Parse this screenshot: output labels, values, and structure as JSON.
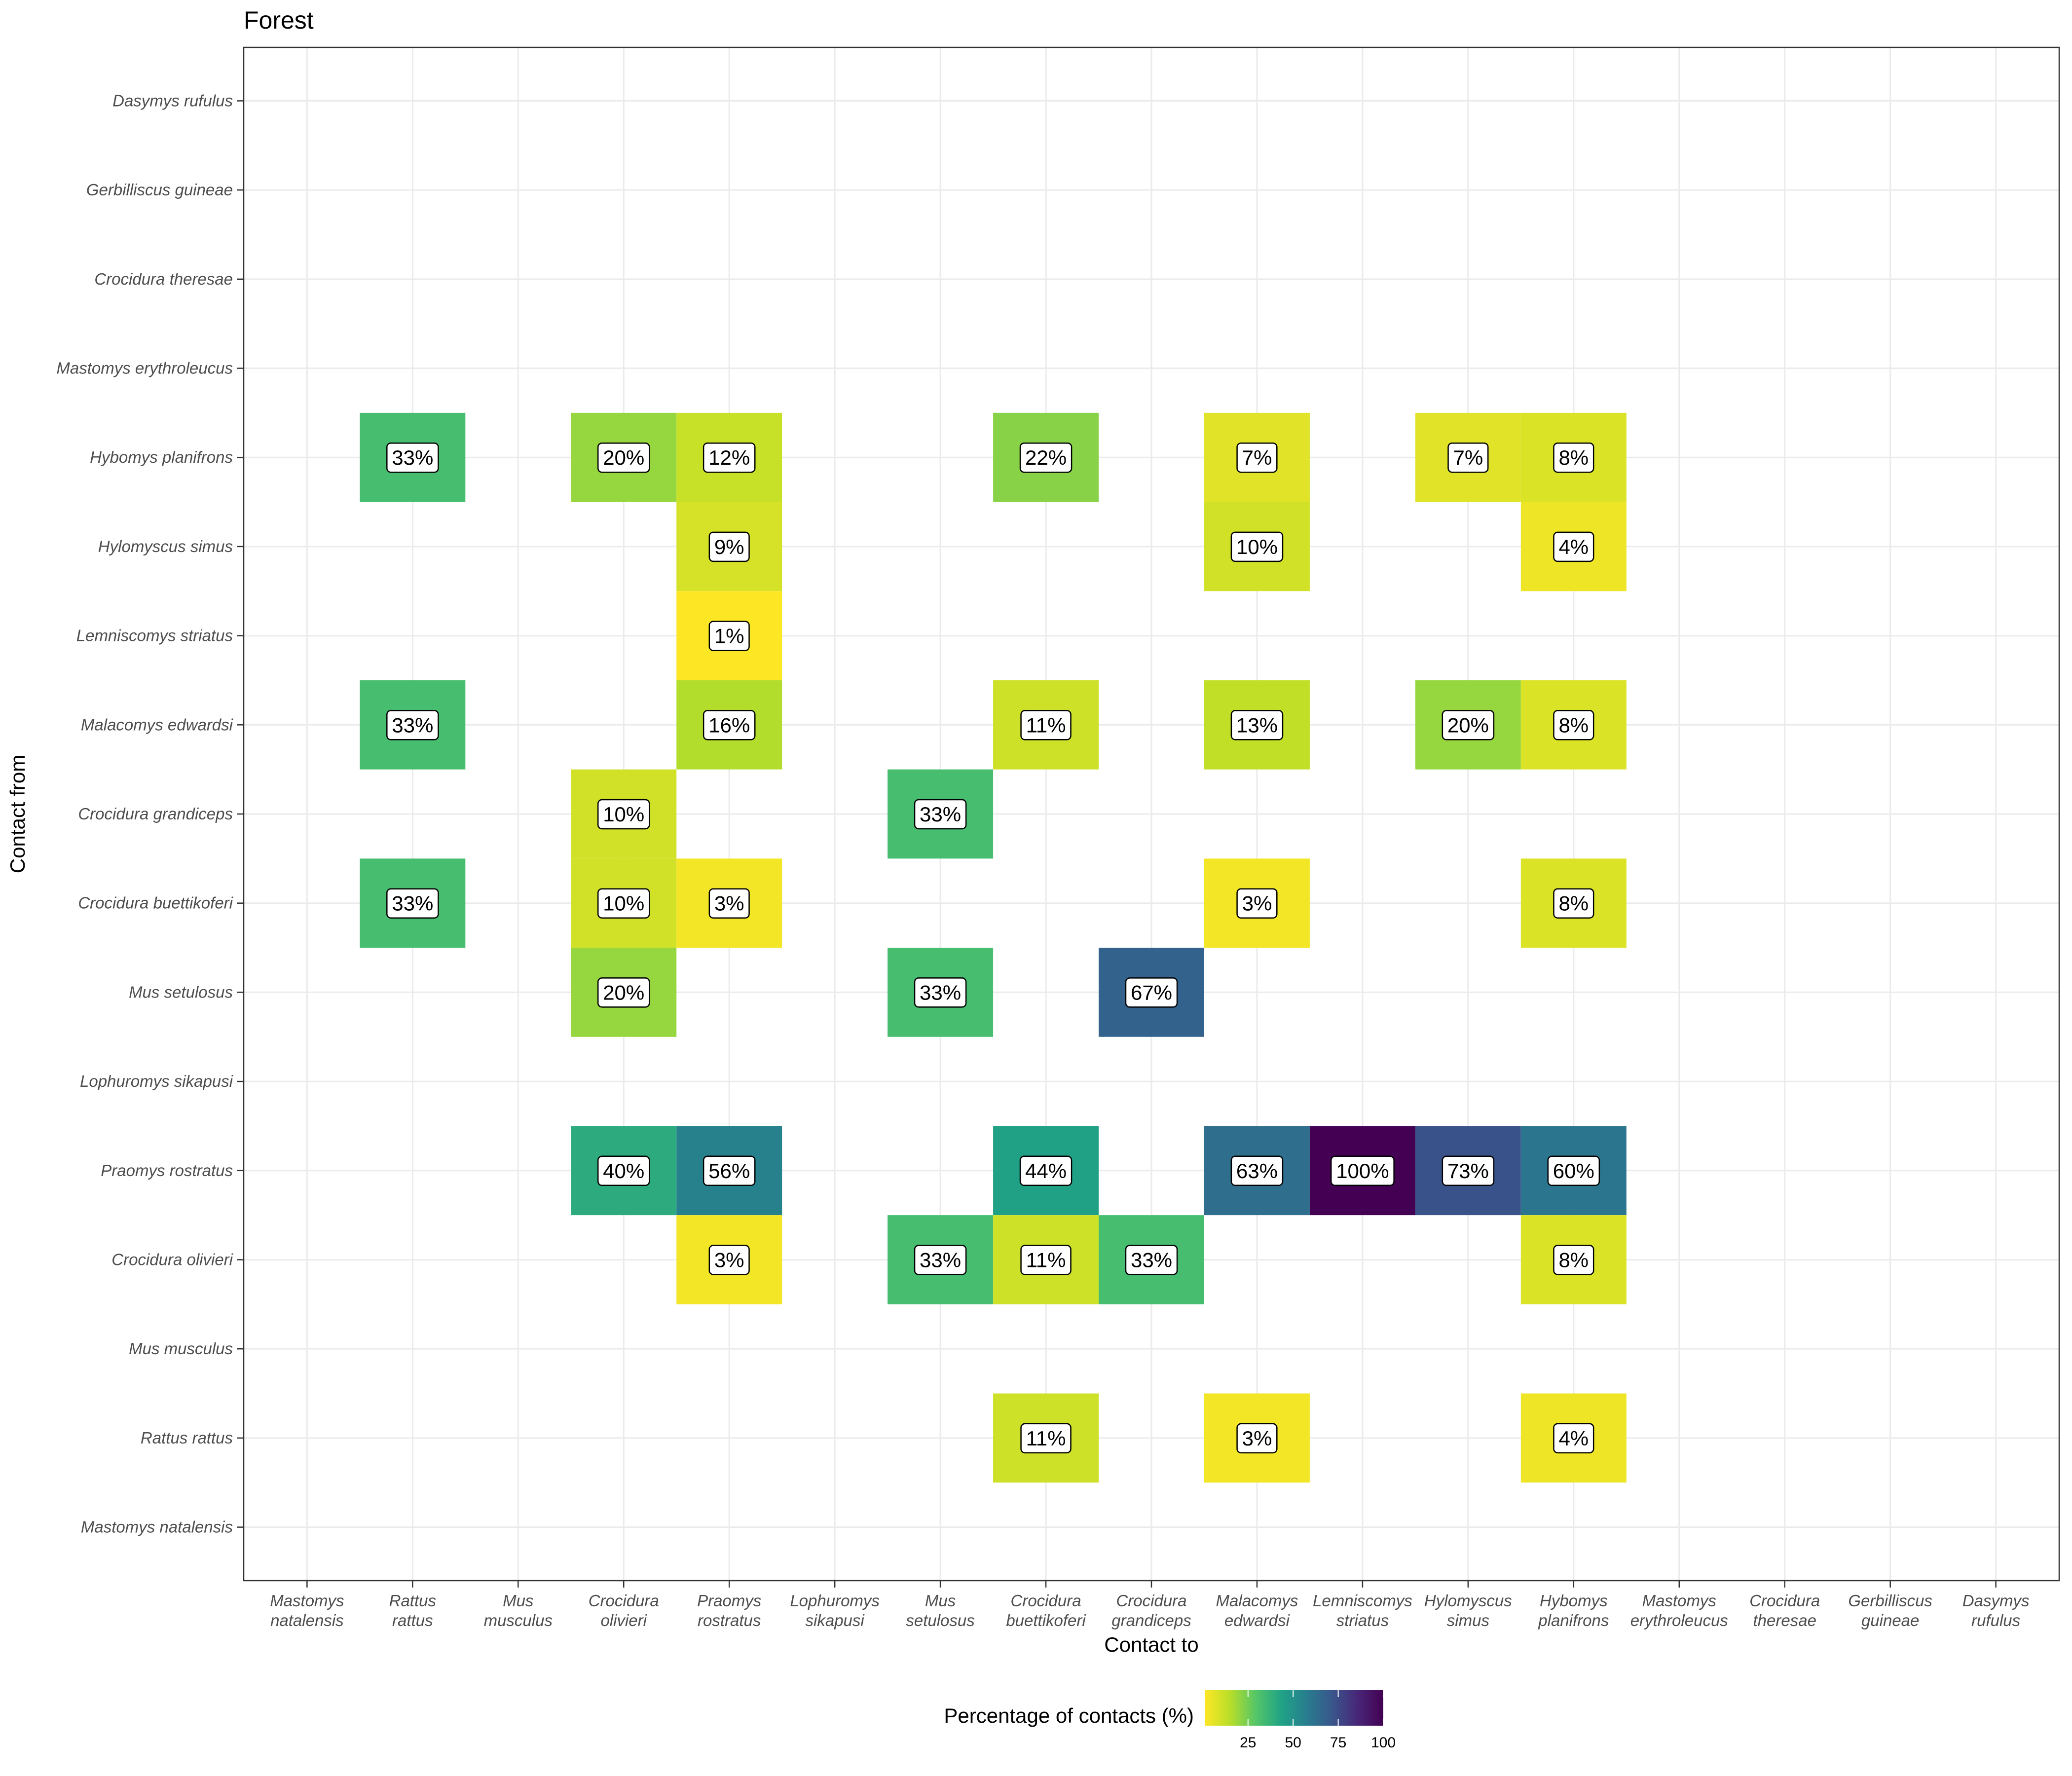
{
  "chart_data": {
    "type": "heatmap",
    "title": "Forest",
    "xlabel": "Contact to",
    "ylabel": "Contact from",
    "x_categories": [
      "Mastomys natalensis",
      "Rattus rattus",
      "Mus musculus",
      "Crocidura olivieri",
      "Praomys rostratus",
      "Lophuromys sikapusi",
      "Mus setulosus",
      "Crocidura buettikoferi",
      "Crocidura grandiceps",
      "Malacomys edwardsi",
      "Lemniscomys striatus",
      "Hylomyscus simus",
      "Hybomys planifrons",
      "Mastomys erythroleucus",
      "Crocidura theresae",
      "Gerbilliscus guineae",
      "Dasymys rufulus"
    ],
    "y_categories": [
      "Dasymys rufulus",
      "Gerbilliscus guineae",
      "Crocidura theresae",
      "Mastomys erythroleucus",
      "Hybomys planifrons",
      "Hylomyscus simus",
      "Lemniscomys striatus",
      "Malacomys edwardsi",
      "Crocidura grandiceps",
      "Crocidura buettikoferi",
      "Mus setulosus",
      "Lophuromys sikapusi",
      "Praomys rostratus",
      "Crocidura olivieri",
      "Mus musculus",
      "Rattus rattus",
      "Mastomys natalensis"
    ],
    "cells": [
      {
        "from": "Hybomys planifrons",
        "to": "Rattus rattus",
        "value": 33,
        "label": "33%"
      },
      {
        "from": "Hybomys planifrons",
        "to": "Crocidura olivieri",
        "value": 20,
        "label": "20%"
      },
      {
        "from": "Hybomys planifrons",
        "to": "Praomys rostratus",
        "value": 12,
        "label": "12%"
      },
      {
        "from": "Hybomys planifrons",
        "to": "Crocidura buettikoferi",
        "value": 22,
        "label": "22%"
      },
      {
        "from": "Hybomys planifrons",
        "to": "Malacomys edwardsi",
        "value": 7,
        "label": "7%"
      },
      {
        "from": "Hybomys planifrons",
        "to": "Hylomyscus simus",
        "value": 7,
        "label": "7%"
      },
      {
        "from": "Hybomys planifrons",
        "to": "Hybomys planifrons",
        "value": 8,
        "label": "8%"
      },
      {
        "from": "Hylomyscus simus",
        "to": "Praomys rostratus",
        "value": 9,
        "label": "9%"
      },
      {
        "from": "Hylomyscus simus",
        "to": "Malacomys edwardsi",
        "value": 10,
        "label": "10%"
      },
      {
        "from": "Hylomyscus simus",
        "to": "Hybomys planifrons",
        "value": 4,
        "label": "4%"
      },
      {
        "from": "Lemniscomys striatus",
        "to": "Praomys rostratus",
        "value": 1,
        "label": "1%"
      },
      {
        "from": "Malacomys edwardsi",
        "to": "Rattus rattus",
        "value": 33,
        "label": "33%"
      },
      {
        "from": "Malacomys edwardsi",
        "to": "Praomys rostratus",
        "value": 16,
        "label": "16%"
      },
      {
        "from": "Malacomys edwardsi",
        "to": "Crocidura buettikoferi",
        "value": 11,
        "label": "11%"
      },
      {
        "from": "Malacomys edwardsi",
        "to": "Malacomys edwardsi",
        "value": 13,
        "label": "13%"
      },
      {
        "from": "Malacomys edwardsi",
        "to": "Hylomyscus simus",
        "value": 20,
        "label": "20%"
      },
      {
        "from": "Malacomys edwardsi",
        "to": "Hybomys planifrons",
        "value": 8,
        "label": "8%"
      },
      {
        "from": "Crocidura grandiceps",
        "to": "Crocidura olivieri",
        "value": 10,
        "label": "10%"
      },
      {
        "from": "Crocidura grandiceps",
        "to": "Mus setulosus",
        "value": 33,
        "label": "33%"
      },
      {
        "from": "Crocidura buettikoferi",
        "to": "Rattus rattus",
        "value": 33,
        "label": "33%"
      },
      {
        "from": "Crocidura buettikoferi",
        "to": "Crocidura olivieri",
        "value": 10,
        "label": "10%"
      },
      {
        "from": "Crocidura buettikoferi",
        "to": "Praomys rostratus",
        "value": 3,
        "label": "3%"
      },
      {
        "from": "Crocidura buettikoferi",
        "to": "Malacomys edwardsi",
        "value": 3,
        "label": "3%"
      },
      {
        "from": "Crocidura buettikoferi",
        "to": "Hybomys planifrons",
        "value": 8,
        "label": "8%"
      },
      {
        "from": "Mus setulosus",
        "to": "Crocidura olivieri",
        "value": 20,
        "label": "20%"
      },
      {
        "from": "Mus setulosus",
        "to": "Mus setulosus",
        "value": 33,
        "label": "33%"
      },
      {
        "from": "Mus setulosus",
        "to": "Crocidura grandiceps",
        "value": 67,
        "label": "67%"
      },
      {
        "from": "Praomys rostratus",
        "to": "Crocidura olivieri",
        "value": 40,
        "label": "40%"
      },
      {
        "from": "Praomys rostratus",
        "to": "Praomys rostratus",
        "value": 56,
        "label": "56%"
      },
      {
        "from": "Praomys rostratus",
        "to": "Crocidura buettikoferi",
        "value": 44,
        "label": "44%"
      },
      {
        "from": "Praomys rostratus",
        "to": "Malacomys edwardsi",
        "value": 63,
        "label": "63%"
      },
      {
        "from": "Praomys rostratus",
        "to": "Lemniscomys striatus",
        "value": 100,
        "label": "100%"
      },
      {
        "from": "Praomys rostratus",
        "to": "Hylomyscus simus",
        "value": 73,
        "label": "73%"
      },
      {
        "from": "Praomys rostratus",
        "to": "Hybomys planifrons",
        "value": 60,
        "label": "60%"
      },
      {
        "from": "Crocidura olivieri",
        "to": "Praomys rostratus",
        "value": 3,
        "label": "3%"
      },
      {
        "from": "Crocidura olivieri",
        "to": "Mus setulosus",
        "value": 33,
        "label": "33%"
      },
      {
        "from": "Crocidura olivieri",
        "to": "Crocidura buettikoferi",
        "value": 11,
        "label": "11%"
      },
      {
        "from": "Crocidura olivieri",
        "to": "Crocidura grandiceps",
        "value": 33,
        "label": "33%"
      },
      {
        "from": "Crocidura olivieri",
        "to": "Hybomys planifrons",
        "value": 8,
        "label": "8%"
      },
      {
        "from": "Rattus rattus",
        "to": "Crocidura buettikoferi",
        "value": 11,
        "label": "11%"
      },
      {
        "from": "Rattus rattus",
        "to": "Malacomys edwardsi",
        "value": 3,
        "label": "3%"
      },
      {
        "from": "Rattus rattus",
        "to": "Hybomys planifrons",
        "value": 4,
        "label": "4%"
      }
    ],
    "color_scale": {
      "title": "Percentage of contacts (%)",
      "palette": "viridis (reversed)",
      "range": [
        1,
        100
      ],
      "breaks": [
        25,
        50,
        75,
        100
      ],
      "stops": [
        "#FDE725",
        "#B8DE29",
        "#55C667",
        "#20A386",
        "#287D8E",
        "#39568C",
        "#482677",
        "#440154"
      ],
      "legend_position": "bottom"
    },
    "grid": true
  }
}
